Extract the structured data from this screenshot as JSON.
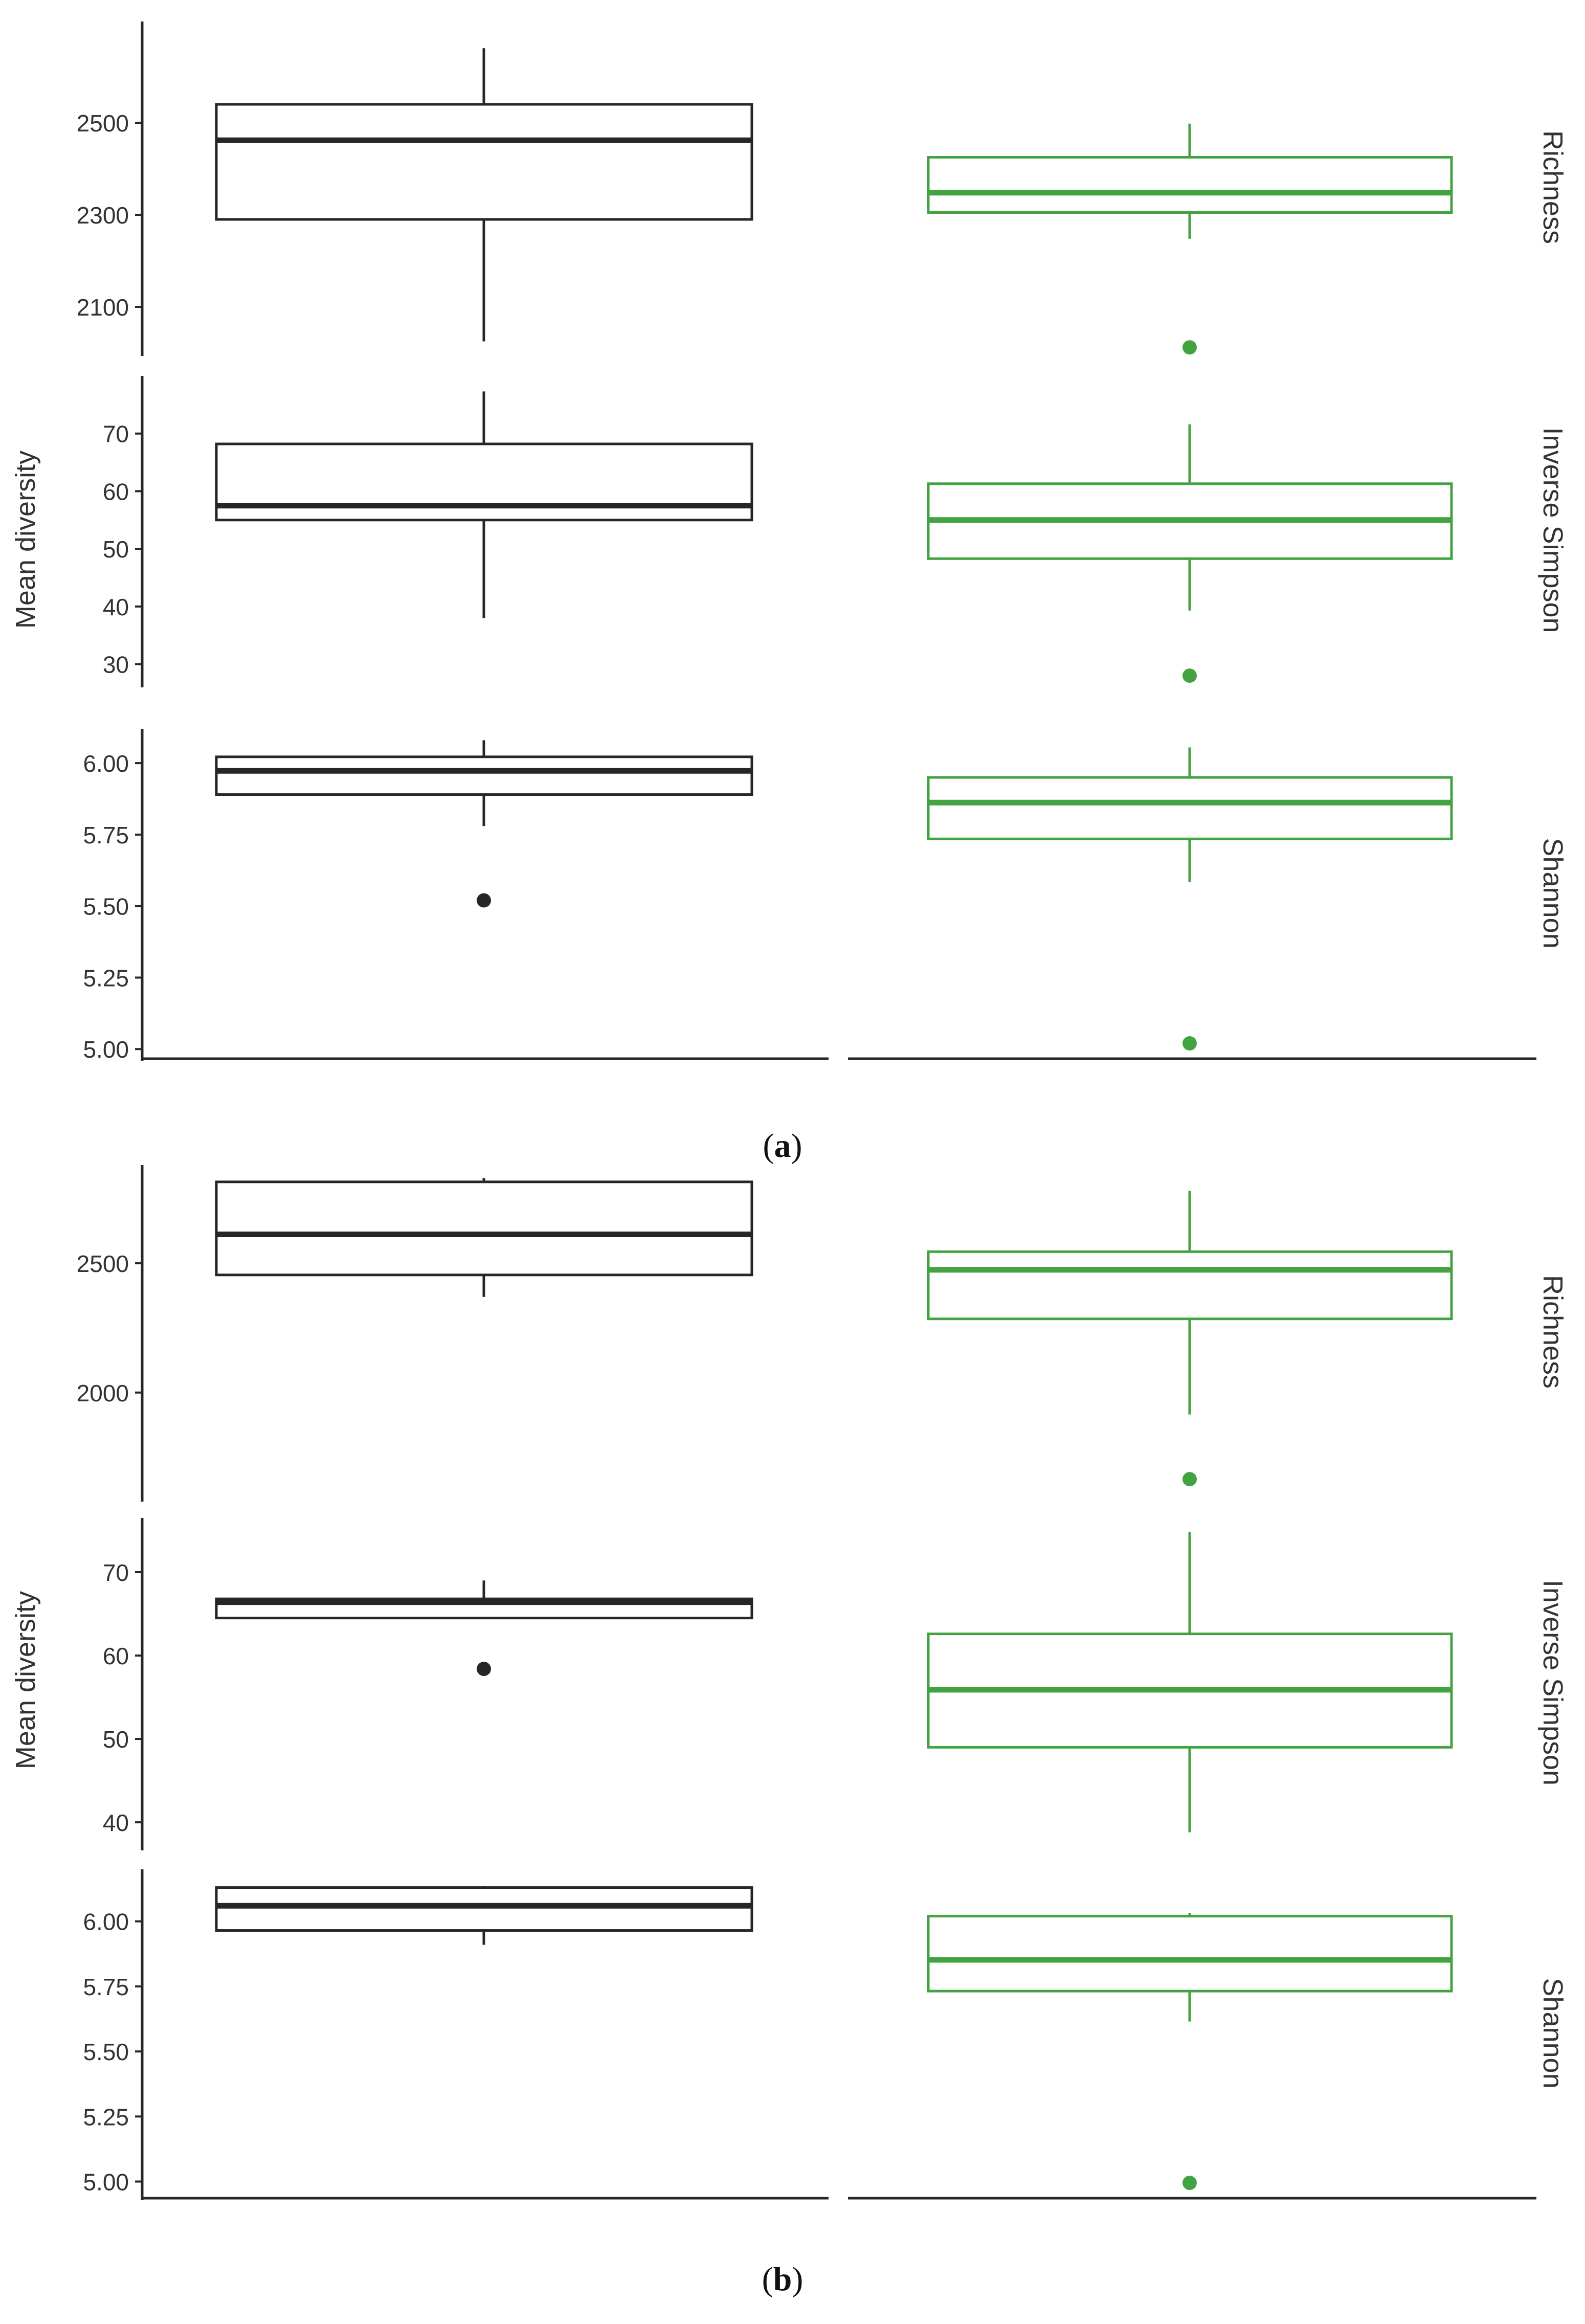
{
  "colors": {
    "group1": "#262626",
    "group2": "#43a340",
    "axis": "#262626",
    "text": "#333333",
    "caption": "#111111"
  },
  "chart_data": [
    {
      "type": "boxplot",
      "panel_label": "a",
      "ylabel": "Mean diversity",
      "x_ticks": false,
      "groups": [
        "group1",
        "group2"
      ],
      "facets": [
        {
          "name": "Richness",
          "ylim": [
            2000,
            2720
          ],
          "yticks": [
            2100,
            2300,
            2500
          ],
          "tick_labels": [
            "2100",
            "2300",
            "2500"
          ],
          "boxes": [
            {
              "group": "group1",
              "whisker_low": 2025,
              "q1": 2290,
              "median": 2462,
              "q3": 2540,
              "whisker_high": 2662,
              "outliers": []
            },
            {
              "group": "group2",
              "whisker_low": 2248,
              "q1": 2305,
              "median": 2348,
              "q3": 2425,
              "whisker_high": 2498,
              "outliers": [
                2012
              ]
            }
          ]
        },
        {
          "name": "Inverse Simpson",
          "ylim": [
            26.5,
            80
          ],
          "yticks": [
            30,
            40,
            50,
            60,
            70
          ],
          "tick_labels": [
            "30",
            "40",
            "50",
            "60",
            "70"
          ],
          "boxes": [
            {
              "group": "group1",
              "whisker_low": 38,
              "q1": 55,
              "median": 57.5,
              "q3": 68.2,
              "whisker_high": 77.3,
              "outliers": []
            },
            {
              "group": "group2",
              "whisker_low": 39.3,
              "q1": 48.3,
              "median": 55,
              "q3": 61.3,
              "whisker_high": 71.6,
              "outliers": [
                28
              ]
            }
          ]
        },
        {
          "name": "Shannon",
          "ylim": [
            4.97,
            6.12
          ],
          "yticks": [
            5.0,
            5.25,
            5.5,
            5.75,
            6.0
          ],
          "tick_labels": [
            "5.00",
            "5.25",
            "5.50",
            "5.75",
            "6.00"
          ],
          "boxes": [
            {
              "group": "group1",
              "whisker_low": 5.78,
              "q1": 5.89,
              "median": 5.973,
              "q3": 6.022,
              "whisker_high": 6.08,
              "outliers": [
                5.52
              ]
            },
            {
              "group": "group2",
              "whisker_low": 5.585,
              "q1": 5.735,
              "median": 5.862,
              "q3": 5.95,
              "whisker_high": 6.055,
              "outliers": [
                5.02
              ]
            }
          ]
        }
      ]
    },
    {
      "type": "boxplot",
      "panel_label": "b",
      "ylabel": "Mean diversity",
      "x_ticks": false,
      "groups": [
        "group1",
        "group2"
      ],
      "facets": [
        {
          "name": "Richness",
          "ylim": [
            1590,
            2880
          ],
          "yticks": [
            2000,
            2500
          ],
          "tick_labels": [
            "2000",
            "2500"
          ],
          "boxes": [
            {
              "group": "group1",
              "whisker_low": 2370,
              "q1": 2455,
              "median": 2612,
              "q3": 2815,
              "whisker_high": 2830,
              "outliers": []
            },
            {
              "group": "group2",
              "whisker_low": 1915,
              "q1": 2285,
              "median": 2475,
              "q3": 2545,
              "whisker_high": 2780,
              "outliers": [
                1665
              ]
            }
          ]
        },
        {
          "name": "Inverse Simpson",
          "ylim": [
            37,
            76.5
          ],
          "yticks": [
            40,
            50,
            60,
            70
          ],
          "tick_labels": [
            "40",
            "50",
            "60",
            "70"
          ],
          "boxes": [
            {
              "group": "group1",
              "whisker_low": 64.5,
              "q1": 64.5,
              "median": 66.4,
              "q3": 66.8,
              "whisker_high": 69,
              "outliers": [
                58.4
              ]
            },
            {
              "group": "group2",
              "whisker_low": 38.8,
              "q1": 49,
              "median": 55.9,
              "q3": 62.6,
              "whisker_high": 74.8,
              "outliers": []
            }
          ]
        },
        {
          "name": "Shannon",
          "ylim": [
            4.94,
            6.2
          ],
          "yticks": [
            5.0,
            5.25,
            5.5,
            5.75,
            6.0
          ],
          "tick_labels": [
            "5.00",
            "5.25",
            "5.50",
            "5.75",
            "6.00"
          ],
          "boxes": [
            {
              "group": "group1",
              "whisker_low": 5.91,
              "q1": 5.965,
              "median": 6.06,
              "q3": 6.13,
              "whisker_high": 6.135,
              "outliers": []
            },
            {
              "group": "group2",
              "whisker_low": 5.615,
              "q1": 5.732,
              "median": 5.852,
              "q3": 6.02,
              "whisker_high": 6.033,
              "outliers": [
                4.995
              ]
            }
          ]
        }
      ]
    }
  ]
}
